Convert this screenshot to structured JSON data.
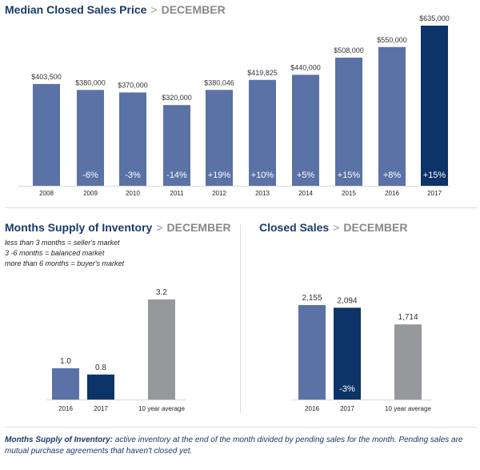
{
  "colors": {
    "bar": "#5a72a6",
    "highlight": "#0c3468",
    "average": "#97989b",
    "title": "#1b3a6b",
    "label": "#333333",
    "change_label": "#ffffff"
  },
  "chart_data": [
    {
      "type": "bar",
      "title": "Median Closed Sales Price",
      "subtitle": "DECEMBER",
      "categories": [
        "2008",
        "2009",
        "2010",
        "2011",
        "2012",
        "2013",
        "2014",
        "2015",
        "2016",
        "2017"
      ],
      "values": [
        403500,
        380000,
        370000,
        320000,
        380046,
        419825,
        440000,
        508000,
        550000,
        635000
      ],
      "value_labels": [
        "$403,500",
        "$380,000",
        "$370,000",
        "$320,000",
        "$380,046",
        "$419,825",
        "$440,000",
        "$508,000",
        "$550,000",
        "$635,000"
      ],
      "change_labels": [
        "",
        "-6%",
        "-3%",
        "-14%",
        "+19%",
        "+10%",
        "+5%",
        "+15%",
        "+8%",
        "+15%"
      ],
      "highlight": [
        "2017"
      ],
      "xlabel": "",
      "ylabel": "",
      "ylim": [
        0,
        635000
      ],
      "grid": false
    },
    {
      "type": "bar",
      "title": "Months Supply of Inventory",
      "subtitle": "DECEMBER",
      "categories": [
        "2016",
        "2017",
        "10 year average"
      ],
      "values": [
        1.0,
        0.8,
        3.2
      ],
      "value_labels": [
        "1.0",
        "0.8",
        "3.2"
      ],
      "change_labels": [
        "",
        "",
        ""
      ],
      "highlight": [
        "2017"
      ],
      "average": [
        "10 year average"
      ],
      "xlabel": "",
      "ylabel": "",
      "ylim": [
        0,
        3.2
      ],
      "grid": false
    },
    {
      "type": "bar",
      "title": "Closed Sales",
      "subtitle": "DECEMBER",
      "categories": [
        "2016",
        "2017",
        "10 year average"
      ],
      "values": [
        2155,
        2094,
        1714
      ],
      "value_labels": [
        "2,155",
        "2,094",
        "1,714"
      ],
      "change_labels": [
        "",
        "-3%",
        ""
      ],
      "highlight": [
        "2017"
      ],
      "average": [
        "10 year average"
      ],
      "xlabel": "",
      "ylabel": "",
      "ylim": [
        0,
        2155
      ],
      "grid": false
    }
  ],
  "header": {
    "separator": ">"
  },
  "inventory_notes": [
    "less than 3 months = seller's market",
    "3 -6 months = balanced market",
    "more than 6 months = buyer's market"
  ],
  "footer": {
    "term": "Months Supply of Inventory:",
    "definition": " active inventory at the end of the month divided by pending sales for the month. Pending sales are mutual purchase agreements that haven't closed yet."
  }
}
